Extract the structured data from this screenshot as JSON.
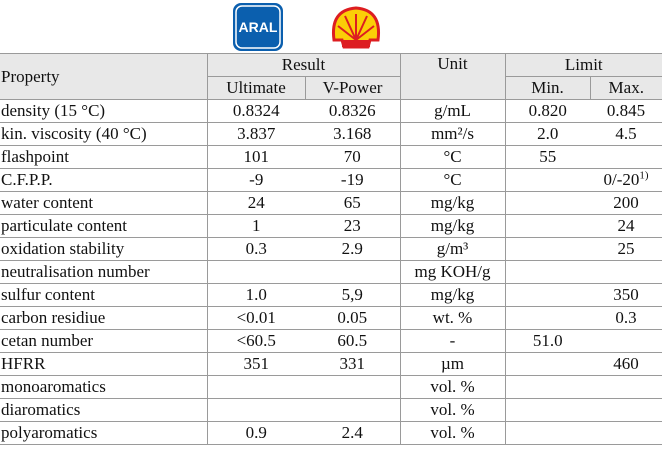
{
  "logos": {
    "aral": "ARAL"
  },
  "table": {
    "header": {
      "property": "Property",
      "result": "Result",
      "unit": "Unit",
      "limit": "Limit",
      "ultimate": "Ultimate",
      "vpower": "V-Power",
      "min": "Min.",
      "max": "Max."
    },
    "rows": [
      [
        "density (15 °C)",
        "0.8324",
        "0.8326",
        "g/mL",
        "0.820",
        "0.845"
      ],
      [
        "kin. viscosity (40 °C)",
        "3.837",
        "3.168",
        "mm²/s",
        "2.0",
        "4.5"
      ],
      [
        "flashpoint",
        "101",
        "70",
        "°C",
        "55",
        null
      ],
      [
        "C.F.P.P.",
        "-9",
        "-19",
        "°C",
        null,
        {
          "text": "0/-20",
          "sup": "1)"
        }
      ],
      [
        "water content",
        "24",
        "65",
        "mg/kg",
        null,
        "200"
      ],
      [
        "particulate content",
        "1",
        "23",
        "mg/kg",
        null,
        "24"
      ],
      [
        "oxidation stability",
        "0.3",
        "2.9",
        "g/m³",
        null,
        "25"
      ],
      [
        "neutralisation number",
        null,
        null,
        "mg KOH/g",
        null,
        null
      ],
      [
        "sulfur content",
        "1.0",
        "5,9",
        "mg/kg",
        null,
        "350"
      ],
      [
        "carbon residiue",
        "<0.01",
        "0.05",
        "wt. %",
        null,
        "0.3"
      ],
      [
        "cetan number",
        "<60.5",
        "60.5",
        "-",
        "51.0",
        null
      ],
      [
        "HFRR",
        "351",
        "331",
        "µm",
        null,
        "460"
      ],
      [
        "monoaromatics",
        null,
        null,
        "vol. %",
        null,
        null
      ],
      [
        "diaromatics",
        null,
        null,
        "vol. %",
        null,
        null
      ],
      [
        "polyaromatics",
        "0.9",
        "2.4",
        "vol. %",
        null,
        null
      ]
    ]
  }
}
